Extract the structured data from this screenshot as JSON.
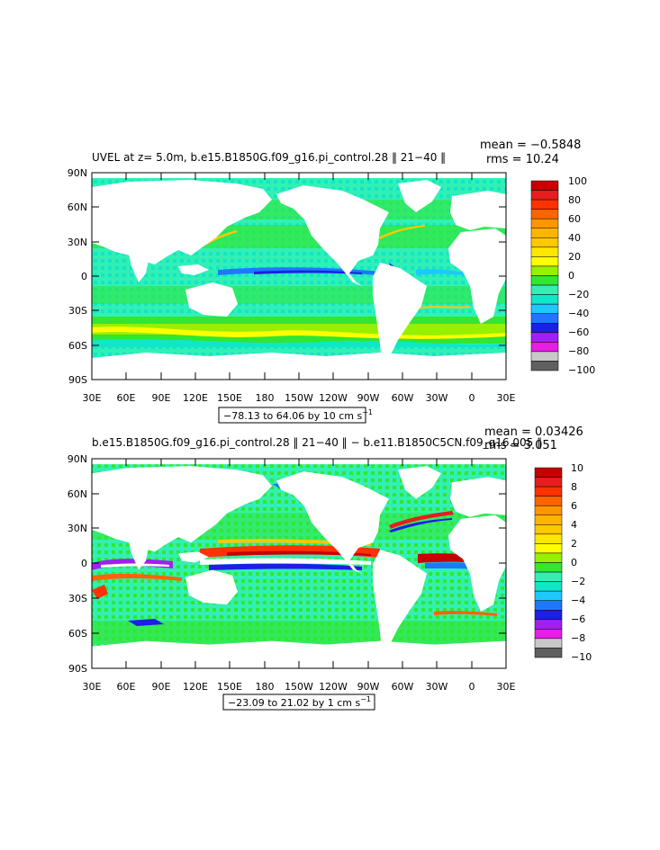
{
  "panels": [
    {
      "title": "UVEL at z=    5.0m, b.e15.B1850G.f09_g16.pi_control.28 ‖ 21−40 ‖",
      "mean_label": "mean = −0.5848",
      "rms_label": "rms = 10.24",
      "range_note": "−78.13 to 64.06 by 10 cm s",
      "range_sup": "−1",
      "colorbar_labels": [
        "100",
        "80",
        "60",
        "40",
        "20",
        "0",
        "−20",
        "−40",
        "−60",
        "−80",
        "−100"
      ]
    },
    {
      "title": "b.e15.B1850G.f09_g16.pi_control.28 ‖ 21−40 ‖ − b.e11.B1850C5CN.f09_g16.005 ‖",
      "mean_label": "mean = 0.03426",
      "rms_label": "rms = 3.051",
      "range_note": "−23.09 to 21.02 by 1 cm s",
      "range_sup": "−1",
      "colorbar_labels": [
        "10",
        "8",
        "6",
        "4",
        "2",
        "0",
        "−2",
        "−4",
        "−6",
        "−8",
        "−10"
      ]
    }
  ],
  "colors": {
    "land": "#ffffff",
    "levels": [
      "#5f5f5f",
      "#c8c8c8",
      "#e61ee6",
      "#a020f0",
      "#1e1ee6",
      "#1e78ff",
      "#1ec8ff",
      "#10e6c8",
      "#32f0b4",
      "#32e632",
      "#96f000",
      "#ffff00",
      "#ffe600",
      "#ffc800",
      "#ffb400",
      "#ff9600",
      "#ff6400",
      "#ff3200",
      "#e61e1e",
      "#c80000"
    ]
  },
  "chart_data": [
    {
      "type": "heatmap",
      "title": "UVEL at z=    5.0m, b.e15.B1850G.f09_g16.pi_control.28 ‖ 21−40 ‖",
      "x_tick_labels": [
        "30E",
        "60E",
        "90E",
        "120E",
        "150E",
        "180",
        "150W",
        "120W",
        "90W",
        "60W",
        "30W",
        "0",
        "30E"
      ],
      "y_tick_labels": [
        "90N",
        "60N",
        "30N",
        "0",
        "30S",
        "60S",
        "90S"
      ],
      "contour_levels": [
        -90,
        -80,
        -70,
        -60,
        -50,
        -40,
        -30,
        -20,
        -10,
        0,
        10,
        20,
        30,
        40,
        50,
        60,
        70,
        80,
        90
      ],
      "colorbar_range": [
        -100,
        100
      ],
      "min": -78.13,
      "max": 64.06,
      "interval": 10,
      "units": "cm s−1",
      "mean": -0.5848,
      "rms": 10.24
    },
    {
      "type": "heatmap",
      "title": "b.e15.B1850G.f09_g16.pi_control.28 ‖ 21−40 ‖ − b.e11.B1850C5CN.f09_g16.005 ‖",
      "x_tick_labels": [
        "30E",
        "60E",
        "90E",
        "120E",
        "150E",
        "180",
        "150W",
        "120W",
        "90W",
        "60W",
        "30W",
        "0",
        "30E"
      ],
      "y_tick_labels": [
        "90N",
        "60N",
        "30N",
        "0",
        "30S",
        "60S",
        "90S"
      ],
      "contour_levels": [
        -9,
        -8,
        -7,
        -6,
        -5,
        -4,
        -3,
        -2,
        -1,
        0,
        1,
        2,
        3,
        4,
        5,
        6,
        7,
        8,
        9
      ],
      "colorbar_range": [
        -10,
        10
      ],
      "min": -23.09,
      "max": 21.02,
      "interval": 1,
      "units": "cm s−1",
      "mean": 0.03426,
      "rms": 3.051
    }
  ]
}
